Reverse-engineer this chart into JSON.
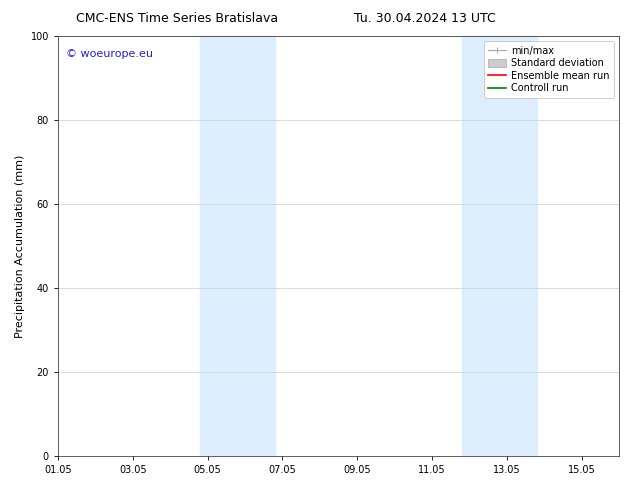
{
  "title_left": "CMC-ENS Time Series Bratislava",
  "title_right": "Tu. 30.04.2024 13 UTC",
  "ylabel": "Precipitation Accumulation (mm)",
  "watermark": "© woeurope.eu",
  "watermark_color": "#2222cc",
  "ylim": [
    0,
    100
  ],
  "yticks": [
    0,
    20,
    40,
    60,
    80,
    100
  ],
  "xtick_labels": [
    "01.05",
    "03.05",
    "05.05",
    "07.05",
    "09.05",
    "11.05",
    "13.05",
    "15.05"
  ],
  "xtick_positions": [
    0,
    2,
    4,
    6,
    8,
    10,
    12,
    14
  ],
  "x_min": 0,
  "x_max": 15,
  "shaded_bands": [
    {
      "x_start": 3.8,
      "x_end": 5.8
    },
    {
      "x_start": 10.8,
      "x_end": 12.8
    }
  ],
  "shade_color": "#ddeeff",
  "legend_labels": [
    "min/max",
    "Standard deviation",
    "Ensemble mean run",
    "Controll run"
  ],
  "legend_colors": [
    "#aaaaaa",
    "#cccccc",
    "#ff0000",
    "#008000"
  ],
  "background_color": "#ffffff",
  "grid_color": "#cccccc",
  "title_fontsize": 9,
  "ylabel_fontsize": 8,
  "tick_fontsize": 7,
  "watermark_fontsize": 8,
  "legend_fontsize": 7
}
